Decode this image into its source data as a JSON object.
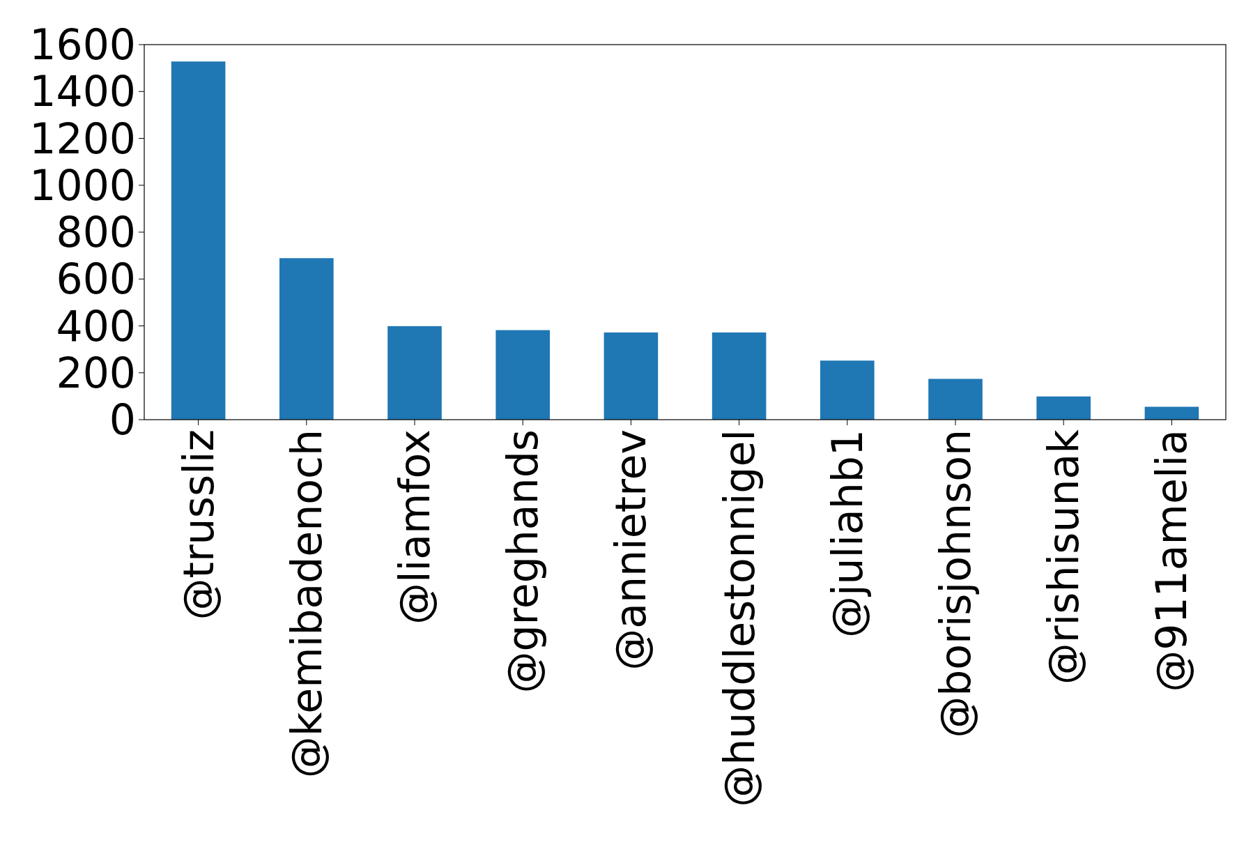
{
  "chart_data": {
    "type": "bar",
    "categories": [
      "@trussliz",
      "@kemibadenoch",
      "@liamfox",
      "@greghands",
      "@annietrev",
      "@huddlestonnigel",
      "@juliahb1",
      "@borisjohnson",
      "@rishisunak",
      "@911amelia"
    ],
    "values": [
      1528,
      689,
      399,
      382,
      372,
      372,
      252,
      174,
      99,
      55
    ],
    "color": "#1f77b4",
    "ylim": [
      0,
      1600
    ],
    "yticks": [
      0,
      200,
      400,
      600,
      800,
      1000,
      1200,
      1400,
      1600
    ],
    "grid": false
  }
}
